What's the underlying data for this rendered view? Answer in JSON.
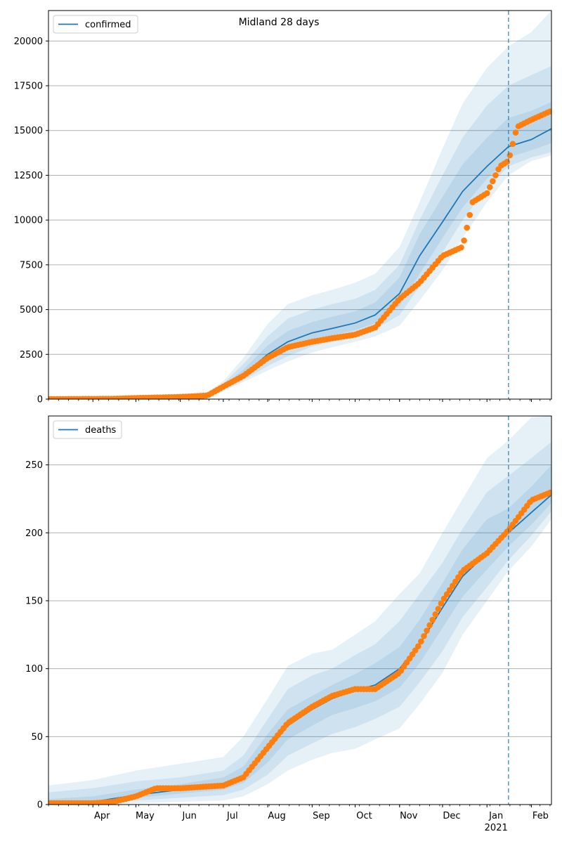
{
  "title": "Midland 28 days",
  "colors": {
    "model": "#1f77b4",
    "observed": "#ff7f0e",
    "band": "#1f77b4",
    "grid": "#b0b0b0"
  },
  "x_axis": {
    "start": "2020-03-01",
    "end": "2021-02-15",
    "month_labels": [
      "Apr",
      "May",
      "Jun",
      "Jul",
      "Aug",
      "Sep",
      "Oct",
      "Nov",
      "Dec",
      "Jan",
      "Feb"
    ],
    "month_dates": [
      "2020-04-01",
      "2020-05-01",
      "2020-06-01",
      "2020-07-01",
      "2020-08-01",
      "2020-09-01",
      "2020-10-01",
      "2020-11-01",
      "2020-12-01",
      "2021-01-01",
      "2021-02-01"
    ],
    "year_label": "2021",
    "forecast_date": "2021-01-16"
  },
  "chart_data": [
    {
      "type": "line",
      "legend": "confirmed",
      "legend_position": "upper-left",
      "grid": true,
      "ylim": [
        0,
        21700
      ],
      "yticks": [
        0,
        2500,
        5000,
        7500,
        10000,
        12500,
        15000,
        17500,
        20000
      ],
      "ytick_labels": [
        "0",
        "2500",
        "5000",
        "7500",
        "10000",
        "12500",
        "15000",
        "17500",
        "20000"
      ],
      "model": {
        "x": [
          "2020-03-01",
          "2020-04-01",
          "2020-05-01",
          "2020-06-01",
          "2020-06-20",
          "2020-07-01",
          "2020-07-15",
          "2020-08-01",
          "2020-08-15",
          "2020-09-01",
          "2020-09-15",
          "2020-10-01",
          "2020-10-15",
          "2020-11-01",
          "2020-11-15",
          "2020-12-01",
          "2020-12-15",
          "2021-01-01",
          "2021-01-16",
          "2021-02-01",
          "2021-02-15"
        ],
        "y": [
          0,
          20,
          60,
          120,
          250,
          650,
          1350,
          2500,
          3200,
          3700,
          3950,
          4250,
          4700,
          5900,
          8000,
          9900,
          11600,
          13000,
          14100,
          14500,
          15100
        ],
        "bands": [
          {
            "lo": [
              0,
              5,
              30,
              70,
              150,
              450,
              950,
              1600,
              2100,
              2600,
              2900,
              3200,
              3500,
              4100,
              5500,
              7200,
              9000,
              11000,
              12500,
              13300,
              13600
            ],
            "hi": [
              80,
              90,
              140,
              220,
              420,
              1000,
              2300,
              4200,
              5300,
              5800,
              6100,
              6500,
              7000,
              8500,
              11000,
              14000,
              16500,
              18500,
              19700,
              20500,
              21700
            ]
          },
          {
            "lo": [
              0,
              10,
              40,
              85,
              180,
              510,
              1050,
              1850,
              2400,
              2950,
              3200,
              3500,
              3900,
              4700,
              6300,
              8200,
              10000,
              11800,
              13000,
              13500,
              13800
            ],
            "hi": [
              60,
              60,
              110,
              180,
              350,
              880,
              1950,
              3500,
              4500,
              5000,
              5300,
              5600,
              6100,
              7500,
              10000,
              12500,
              14600,
              16400,
              17500,
              18100,
              18600
            ]
          },
          {
            "lo": [
              0,
              14,
              48,
              100,
              210,
              570,
              1180,
              2150,
              2750,
              3300,
              3550,
              3850,
              4250,
              5200,
              7000,
              9000,
              10700,
              12300,
              13500,
              13900,
              14300
            ],
            "hi": [
              40,
              35,
              85,
              150,
              300,
              770,
              1650,
              3000,
              3800,
              4300,
              4600,
              4900,
              5400,
              6800,
              9200,
              11300,
              13100,
              14600,
              15700,
              16100,
              16600
            ]
          }
        ]
      },
      "observed": {
        "x": [
          "2020-03-01",
          "2020-04-15",
          "2020-05-01",
          "2020-06-01",
          "2020-06-20",
          "2020-07-01",
          "2020-07-15",
          "2020-08-01",
          "2020-08-15",
          "2020-09-01",
          "2020-09-15",
          "2020-10-01",
          "2020-10-15",
          "2020-11-01",
          "2020-11-15",
          "2020-12-01",
          "2020-12-15",
          "2020-12-22",
          "2021-01-01",
          "2021-01-10",
          "2021-01-16",
          "2021-01-22",
          "2021-02-01",
          "2021-02-15"
        ],
        "y": [
          0,
          20,
          60,
          120,
          200,
          700,
          1300,
          2300,
          2900,
          3200,
          3400,
          3600,
          4000,
          5600,
          6500,
          8000,
          8500,
          11000,
          11500,
          13000,
          13300,
          15200,
          15600,
          16100
        ]
      }
    },
    {
      "type": "line",
      "legend": "deaths",
      "legend_position": "upper-left",
      "grid": true,
      "ylim": [
        0,
        286
      ],
      "yticks": [
        0,
        50,
        100,
        150,
        200,
        250
      ],
      "ytick_labels": [
        "0",
        "50",
        "100",
        "150",
        "200",
        "250"
      ],
      "model": {
        "x": [
          "2020-03-01",
          "2020-04-01",
          "2020-05-01",
          "2020-06-01",
          "2020-07-01",
          "2020-07-15",
          "2020-08-01",
          "2020-08-15",
          "2020-09-01",
          "2020-09-15",
          "2020-10-01",
          "2020-10-15",
          "2020-11-01",
          "2020-11-15",
          "2020-12-01",
          "2020-12-15",
          "2021-01-01",
          "2021-01-16",
          "2021-02-01",
          "2021-02-15"
        ],
        "y": [
          1,
          2,
          7,
          11,
          15,
          21,
          40,
          58,
          70,
          78,
          84,
          88,
          100,
          118,
          145,
          168,
          185,
          200,
          215,
          228
        ],
        "bands": [
          {
            "lo": [
              0,
              0,
              1,
              2,
              3,
              6,
              15,
              25,
              33,
              38,
              41,
              48,
              56,
              74,
              97,
              125,
              150,
              172,
              190,
              210
            ],
            "hi": [
              14,
              18,
              25,
              30,
              35,
              50,
              78,
              102,
              111,
              114,
              125,
              135,
              155,
              170,
              200,
              225,
              255,
              268,
              285,
              286
            ]
          },
          {
            "lo": [
              0,
              0,
              3,
              5,
              7,
              11,
              22,
              36,
              45,
              52,
              57,
              63,
              72,
              90,
              113,
              138,
              160,
              180,
              198,
              216
            ],
            "hi": [
              9,
              12,
              17,
              20,
              25,
              36,
              63,
              85,
              95,
              100,
              110,
              118,
              135,
              155,
              178,
              203,
              230,
              242,
              255,
              267
            ]
          },
          {
            "lo": [
              0,
              1,
              5,
              8,
              11,
              16,
              31,
              48,
              58,
              66,
              71,
              76,
              86,
              104,
              130,
              153,
              173,
              190,
              206,
              222
            ],
            "hi": [
              4,
              6,
              11,
              15,
              20,
              28,
              52,
              70,
              80,
              88,
              96,
              104,
              116,
              136,
              163,
              188,
              210,
              218,
              234,
              250
            ]
          }
        ]
      },
      "observed": {
        "x": [
          "2020-03-01",
          "2020-04-01",
          "2020-04-15",
          "2020-05-01",
          "2020-05-15",
          "2020-06-01",
          "2020-07-01",
          "2020-07-15",
          "2020-08-01",
          "2020-08-15",
          "2020-09-01",
          "2020-09-15",
          "2020-10-01",
          "2020-10-15",
          "2020-11-01",
          "2020-11-15",
          "2020-12-01",
          "2020-12-15",
          "2021-01-01",
          "2021-01-16",
          "2021-02-01",
          "2021-02-15"
        ],
        "y": [
          1,
          1,
          2,
          6,
          12,
          12,
          14,
          20,
          42,
          60,
          72,
          80,
          85,
          85,
          97,
          118,
          150,
          172,
          185,
          202,
          224,
          230
        ]
      }
    }
  ]
}
